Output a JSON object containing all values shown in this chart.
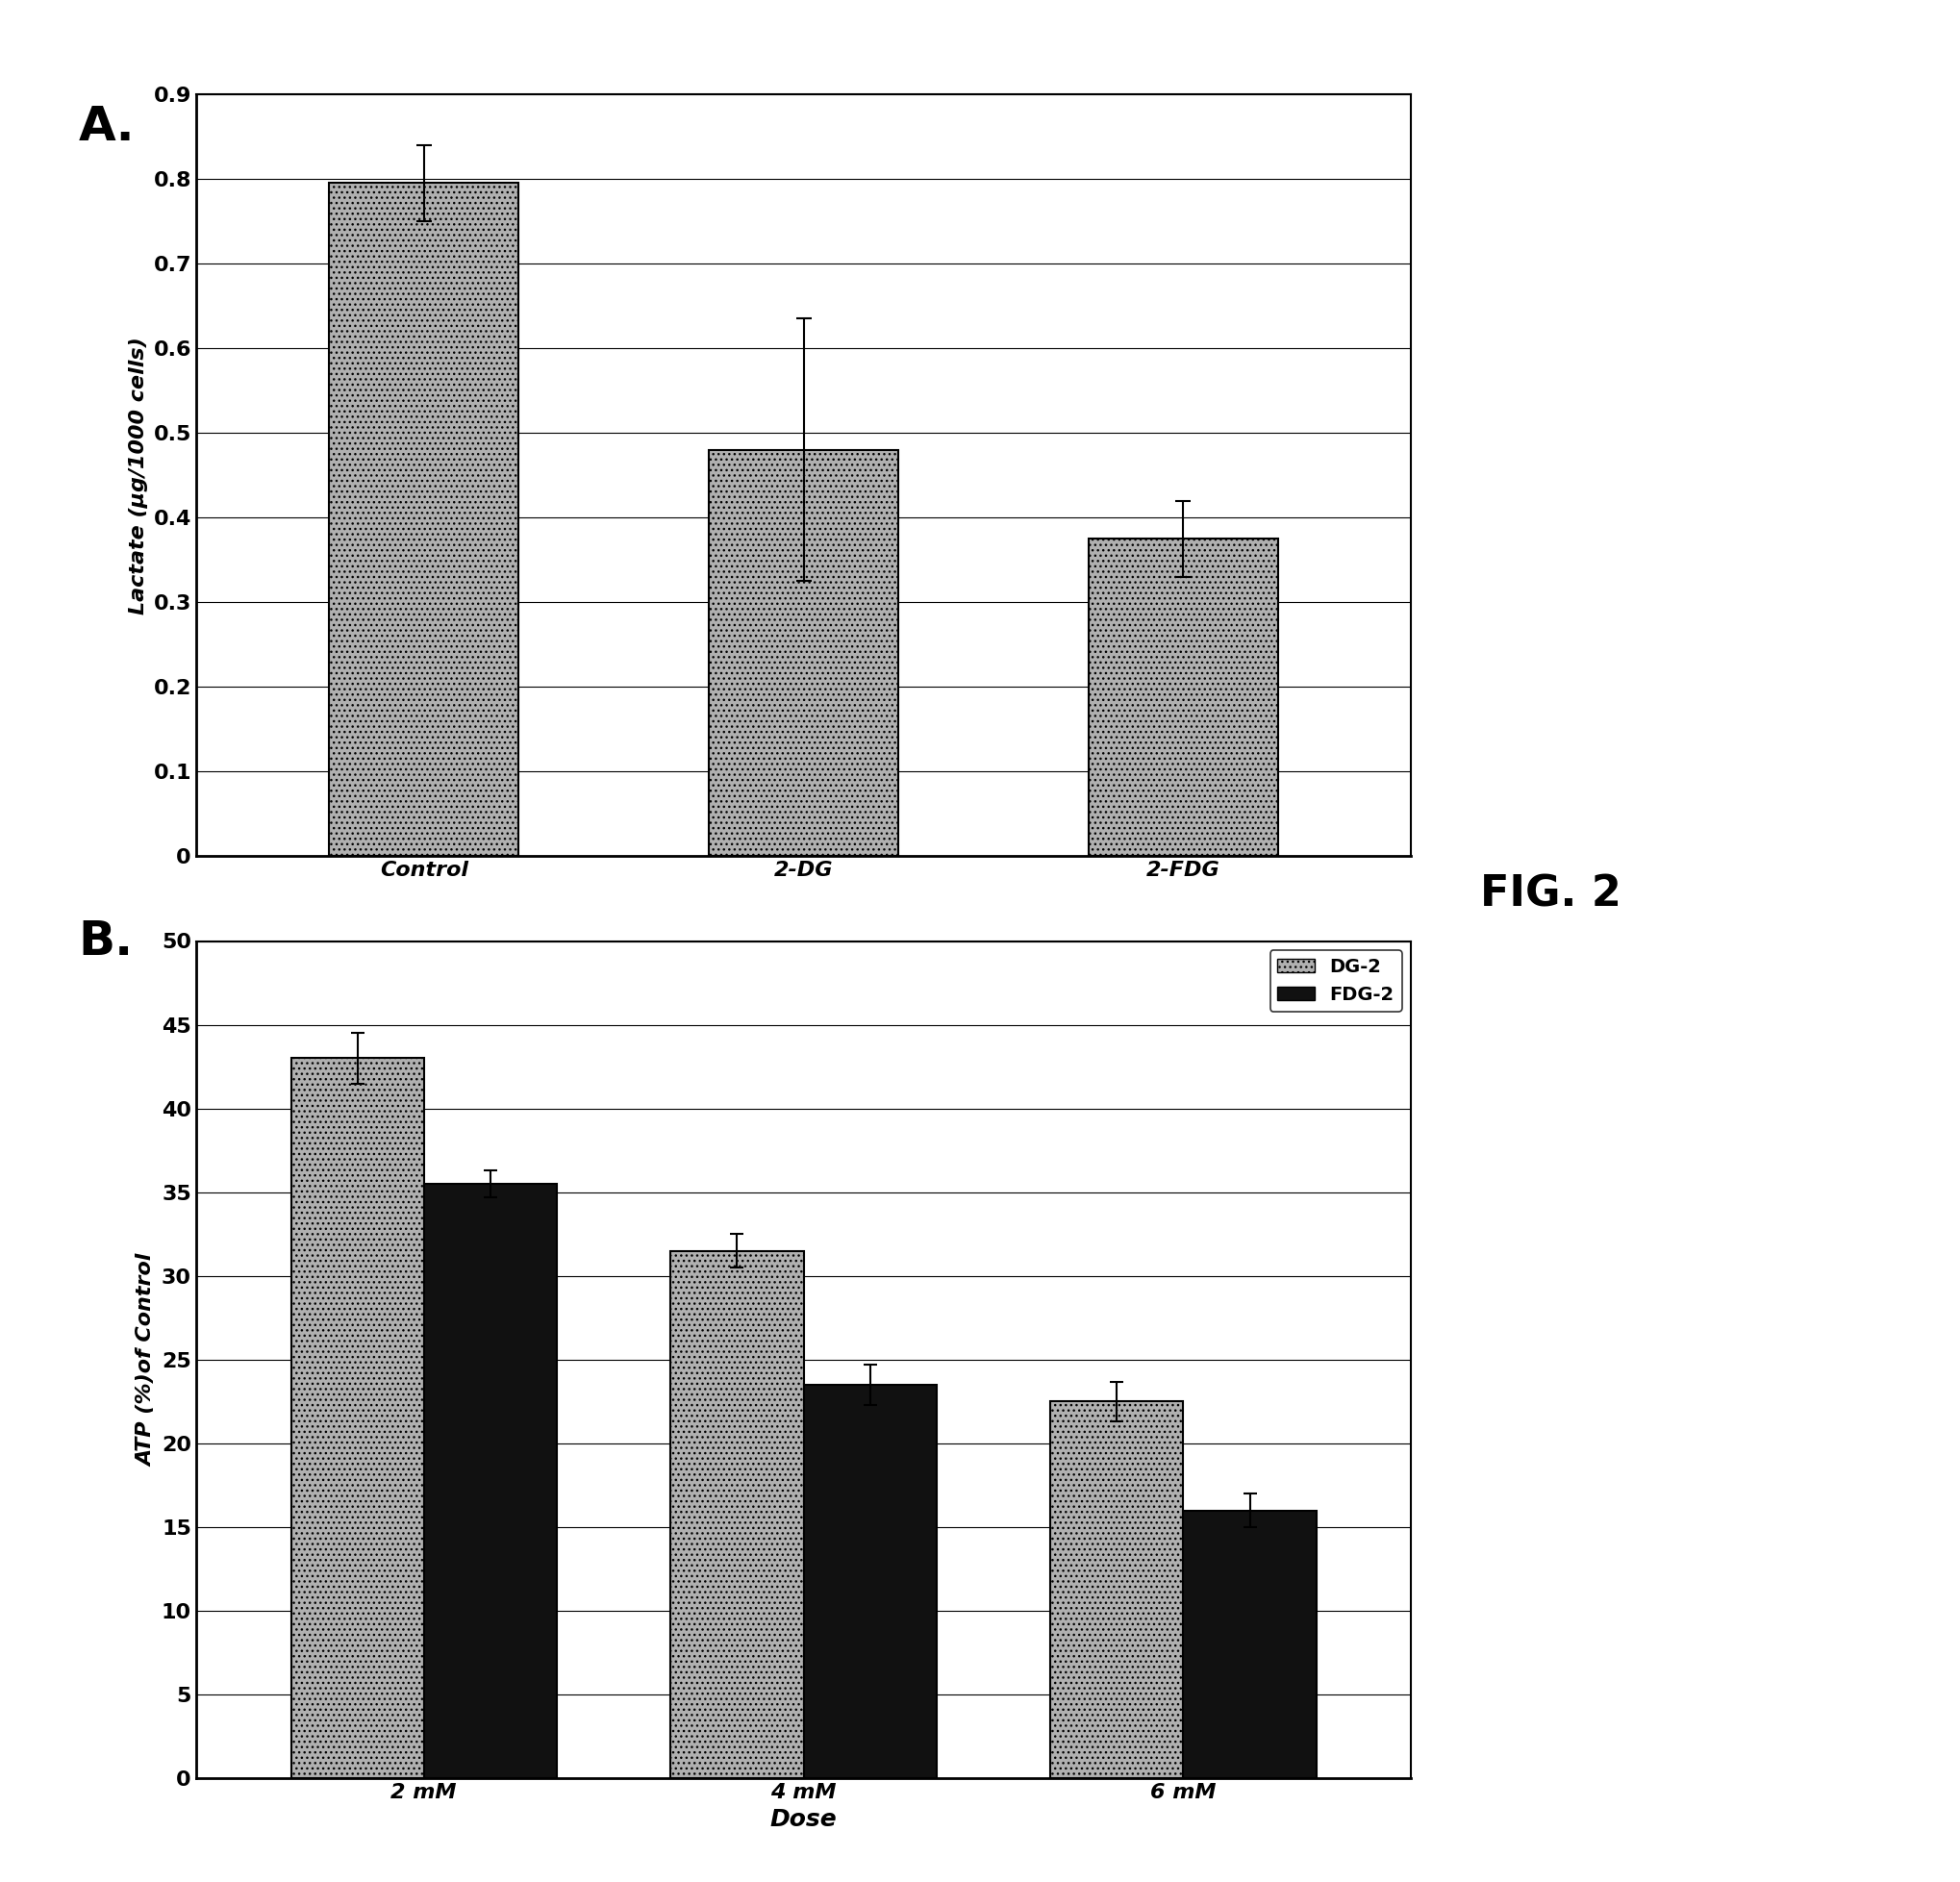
{
  "panel_A": {
    "categories": [
      "Control",
      "2-DG",
      "2-FDG"
    ],
    "values": [
      0.795,
      0.48,
      0.375
    ],
    "errors": [
      0.045,
      0.155,
      0.045
    ],
    "ylabel": "Lactate (µg/1000 cells)",
    "ylim": [
      0,
      0.9
    ],
    "yticks": [
      0,
      0.1,
      0.2,
      0.3,
      0.4,
      0.5,
      0.6,
      0.7,
      0.8,
      0.9
    ],
    "bar_color": "#b0b0b0",
    "bar_hatch": "...",
    "bar_edgecolor": "#000000",
    "bar_width": 0.5
  },
  "panel_B": {
    "categories": [
      "2 mM",
      "4 mM",
      "6 mM"
    ],
    "values_dg2": [
      43.0,
      31.5,
      22.5
    ],
    "values_fdg2": [
      35.5,
      23.5,
      16.0
    ],
    "errors_dg2": [
      1.5,
      1.0,
      1.2
    ],
    "errors_fdg2": [
      0.8,
      1.2,
      1.0
    ],
    "ylabel": "ATP (%)of Control",
    "xlabel": "Dose",
    "ylim": [
      0,
      50
    ],
    "yticks": [
      0,
      5,
      10,
      15,
      20,
      25,
      30,
      35,
      40,
      45,
      50
    ],
    "bar_color_dg2": "#b0b0b0",
    "bar_color_fdg2": "#111111",
    "bar_hatch_dg2": "...",
    "bar_edgecolor": "#000000",
    "bar_width": 0.35,
    "legend_dg2": "DG-2",
    "legend_fdg2": "FDG-2"
  },
  "label_A": "A.",
  "label_B": "B.",
  "fig_label": "FIG. 2",
  "background_color": "#ffffff",
  "plot_bg": "#ffffff"
}
